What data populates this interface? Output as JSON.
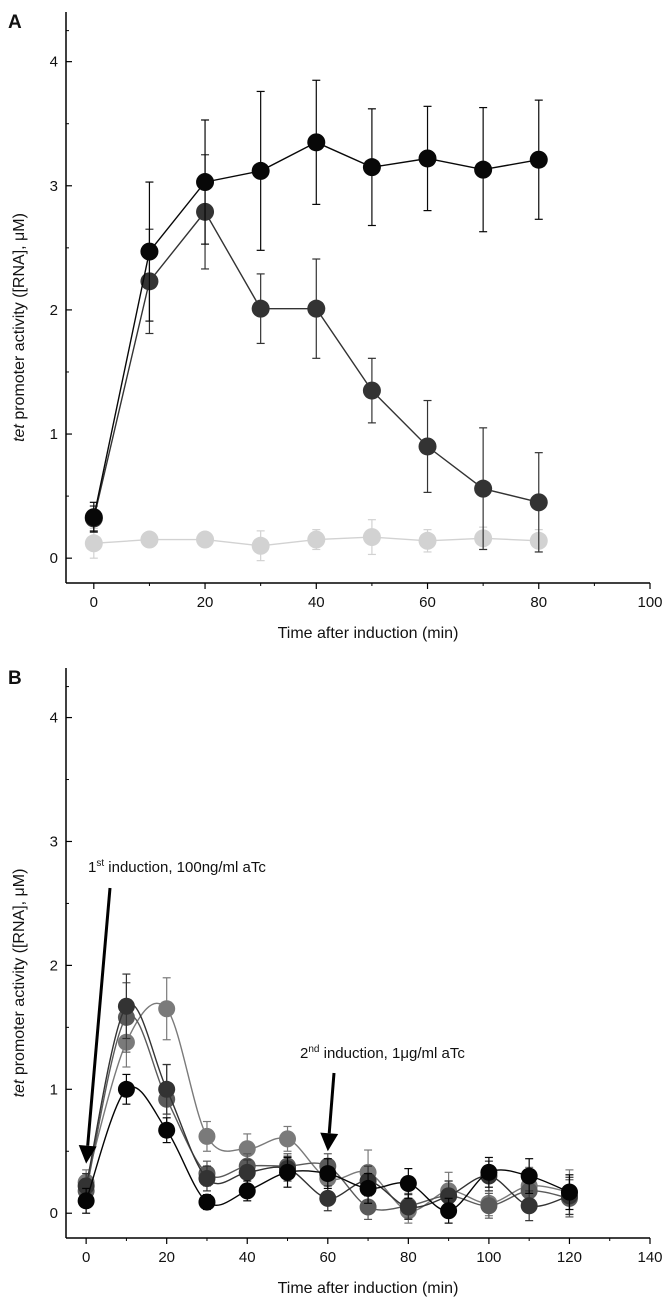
{
  "chart_data": [
    {
      "type": "line",
      "panel": "A",
      "xlabel": "Time after induction (min)",
      "ylabel_italic": "tet",
      "ylabel_rest": " promoter activity ([RNA], μM)",
      "xlim": [
        -5,
        100
      ],
      "ylim": [
        -0.2,
        4.4
      ],
      "xticks": [
        0,
        20,
        40,
        60,
        80,
        100
      ],
      "xtick_labels": [
        "0",
        "20",
        "40",
        "60",
        "80",
        "100"
      ],
      "yticks": [
        0,
        1,
        2,
        3,
        4
      ],
      "ytick_labels": [
        "0",
        "1",
        "2",
        "3",
        "4"
      ],
      "grid": false,
      "series": [
        {
          "color": "#d2d2d2",
          "x": [
            0,
            10,
            20,
            30,
            40,
            50,
            60,
            70,
            80
          ],
          "y": [
            0.12,
            0.15,
            0.15,
            0.1,
            0.15,
            0.17,
            0.14,
            0.16,
            0.14
          ],
          "err": [
            0.12,
            0.06,
            0.06,
            0.12,
            0.08,
            0.14,
            0.09,
            0.09,
            0.09
          ]
        },
        {
          "color": "#333333",
          "x": [
            0,
            10,
            20,
            30,
            40,
            50,
            60,
            70,
            80
          ],
          "y": [
            0.32,
            2.23,
            2.79,
            2.01,
            2.01,
            1.35,
            0.9,
            0.56,
            0.45
          ],
          "err": [
            0.1,
            0.42,
            0.46,
            0.28,
            0.4,
            0.26,
            0.37,
            0.49,
            0.4
          ]
        },
        {
          "color": "#080808",
          "x": [
            0,
            10,
            20,
            30,
            40,
            50,
            60,
            70,
            80
          ],
          "y": [
            0.33,
            2.47,
            3.03,
            3.12,
            3.35,
            3.15,
            3.22,
            3.13,
            3.21
          ],
          "err": [
            0.12,
            0.56,
            0.5,
            0.64,
            0.5,
            0.47,
            0.42,
            0.5,
            0.48
          ]
        }
      ]
    },
    {
      "type": "line",
      "panel": "B",
      "xlabel": "Time after induction (min)",
      "ylabel_italic": "tet",
      "ylabel_rest": " promoter activity ([RNA], μM)",
      "xlim": [
        -5,
        140
      ],
      "ylim": [
        -0.2,
        4.4
      ],
      "xticks": [
        0,
        20,
        40,
        60,
        80,
        100,
        120,
        140
      ],
      "xtick_labels": [
        "0",
        "20",
        "40",
        "60",
        "80",
        "100",
        "120",
        "140"
      ],
      "yticks": [
        0,
        1,
        2,
        3,
        4
      ],
      "ytick_labels": [
        "0",
        "1",
        "2",
        "3",
        "4"
      ],
      "grid": false,
      "annotations": [
        {
          "base": "1",
          "sup": "st",
          "rest": " induction, 100ng/ml aTc",
          "arrow_x": 0,
          "arrow_y": 0.4
        },
        {
          "base": "2",
          "sup": "nd",
          "rest": " induction, 1μg/ml aTc",
          "arrow_x": 60,
          "arrow_y": 0.5
        }
      ],
      "series": [
        {
          "color": "#7a7a7a",
          "x": [
            0,
            10,
            20,
            30,
            40,
            50,
            60,
            70,
            80,
            90,
            100,
            110,
            120
          ],
          "y": [
            0.25,
            1.38,
            1.65,
            0.62,
            0.52,
            0.6,
            0.28,
            0.33,
            0.02,
            0.18,
            0.08,
            0.22,
            0.17
          ],
          "err": [
            0.1,
            0.2,
            0.25,
            0.12,
            0.12,
            0.1,
            0.12,
            0.18,
            0.1,
            0.15,
            0.1,
            0.15,
            0.18
          ]
        },
        {
          "color": "#5a5a5a",
          "x": [
            0,
            10,
            20,
            30,
            40,
            50,
            60,
            70,
            80,
            90,
            100,
            110,
            120
          ],
          "y": [
            0.18,
            1.58,
            0.92,
            0.32,
            0.38,
            0.38,
            0.38,
            0.05,
            0.06,
            0.14,
            0.06,
            0.18,
            0.12
          ],
          "err": [
            0.1,
            0.28,
            0.28,
            0.1,
            0.1,
            0.1,
            0.1,
            0.1,
            0.1,
            0.12,
            0.1,
            0.12,
            0.15
          ]
        },
        {
          "color": "#333333",
          "x": [
            0,
            10,
            20,
            30,
            40,
            50,
            60,
            70,
            80,
            90,
            100,
            110,
            120
          ],
          "y": [
            0.22,
            1.67,
            1.0,
            0.28,
            0.33,
            0.36,
            0.12,
            0.26,
            0.05,
            0.14,
            0.3,
            0.06,
            0.14
          ],
          "err": [
            0.1,
            0.26,
            0.2,
            0.1,
            0.1,
            0.1,
            0.1,
            0.12,
            0.1,
            0.12,
            0.12,
            0.12,
            0.15
          ]
        },
        {
          "color": "#050505",
          "x": [
            0,
            10,
            20,
            30,
            40,
            50,
            60,
            70,
            80,
            90,
            100,
            110,
            120
          ],
          "y": [
            0.1,
            1.0,
            0.67,
            0.09,
            0.18,
            0.33,
            0.32,
            0.2,
            0.24,
            0.02,
            0.33,
            0.3,
            0.17
          ],
          "err": [
            0.1,
            0.12,
            0.1,
            0.06,
            0.08,
            0.12,
            0.12,
            0.12,
            0.12,
            0.1,
            0.12,
            0.14,
            0.14
          ]
        }
      ]
    }
  ]
}
